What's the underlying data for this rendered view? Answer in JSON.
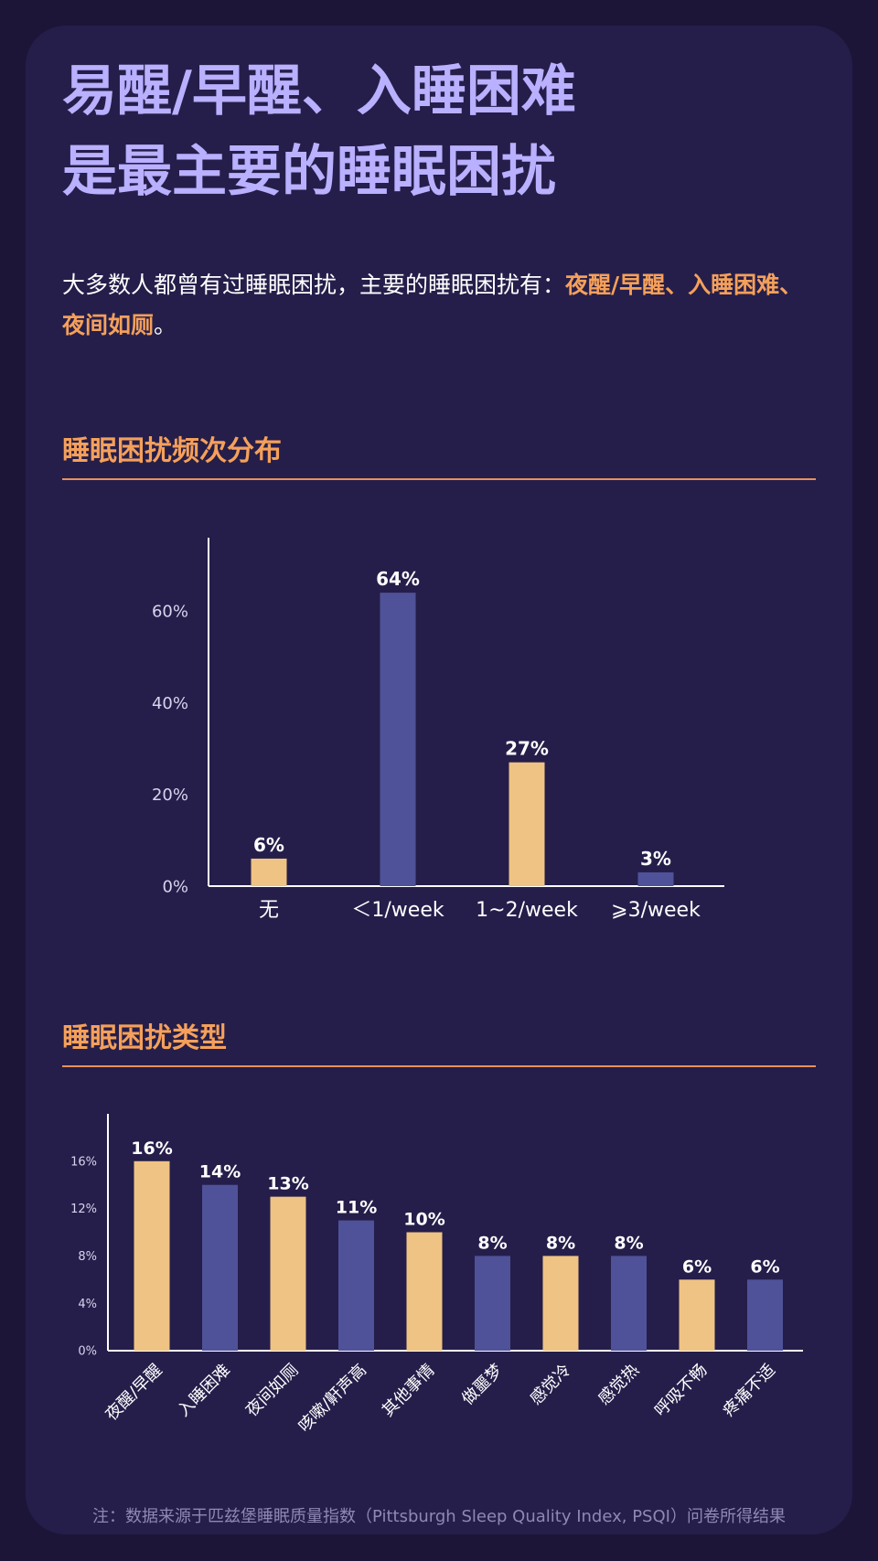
{
  "title": {
    "line1": "易醒/早醒、入睡困难",
    "line2": "是最主要的睡眠困扰"
  },
  "intro": {
    "text": "大多数人都曾有过睡眠困扰，主要的睡眠困扰有：",
    "highlight": "夜醒/早醒、入睡困难、夜间如厕",
    "end": "。"
  },
  "sections": {
    "frequency_title": "睡眠困扰频次分布",
    "types_title": "睡眠困扰类型"
  },
  "colors": {
    "yellow": "#efc383",
    "blue": "#4f5298",
    "axis": "#ffffff",
    "label": "#ffffff",
    "accent": "#f5a05a"
  },
  "chart_data": [
    {
      "type": "bar",
      "title": "睡眠困扰频次分布",
      "xlabel": "",
      "ylabel": "",
      "categories": [
        "无",
        "＜1/week",
        "1~2/week",
        "⩾3/week"
      ],
      "values": [
        6,
        64,
        27,
        3
      ],
      "value_labels": [
        "6%",
        "64%",
        "27%",
        "3%"
      ],
      "bar_colors": [
        "yellow",
        "blue",
        "yellow",
        "blue"
      ],
      "yticks": [
        0,
        20,
        40,
        60
      ],
      "ytick_labels": [
        "0%",
        "20%",
        "40%",
        "60%"
      ],
      "ylim": [
        0,
        76
      ],
      "grid": false,
      "legend": "none"
    },
    {
      "type": "bar",
      "title": "睡眠困扰类型",
      "xlabel": "",
      "ylabel": "",
      "categories": [
        "夜醒/早醒",
        "入睡困难",
        "夜间如厕",
        "咳嗽/鼾声高",
        "其他事情",
        "做噩梦",
        "感觉冷",
        "感觉热",
        "呼吸不畅",
        "疼痛不适"
      ],
      "values": [
        16,
        14,
        13,
        11,
        10,
        8,
        8,
        8,
        6,
        6
      ],
      "value_labels": [
        "16%",
        "14%",
        "13%",
        "11%",
        "10%",
        "8%",
        "8%",
        "8%",
        "6%",
        "6%"
      ],
      "bar_colors": [
        "yellow",
        "blue",
        "yellow",
        "blue",
        "yellow",
        "blue",
        "yellow",
        "blue",
        "yellow",
        "blue"
      ],
      "yticks": [
        0,
        4,
        8,
        12,
        16
      ],
      "ytick_labels": [
        "0%",
        "4%",
        "8%",
        "12%",
        "16%"
      ],
      "ylim": [
        0,
        20
      ],
      "grid": false,
      "legend": "none"
    }
  ],
  "footnote": "注：数据来源于匹兹堡睡眠质量指数（Pittsburgh Sleep Quality Index, PSQI）问卷所得结果"
}
